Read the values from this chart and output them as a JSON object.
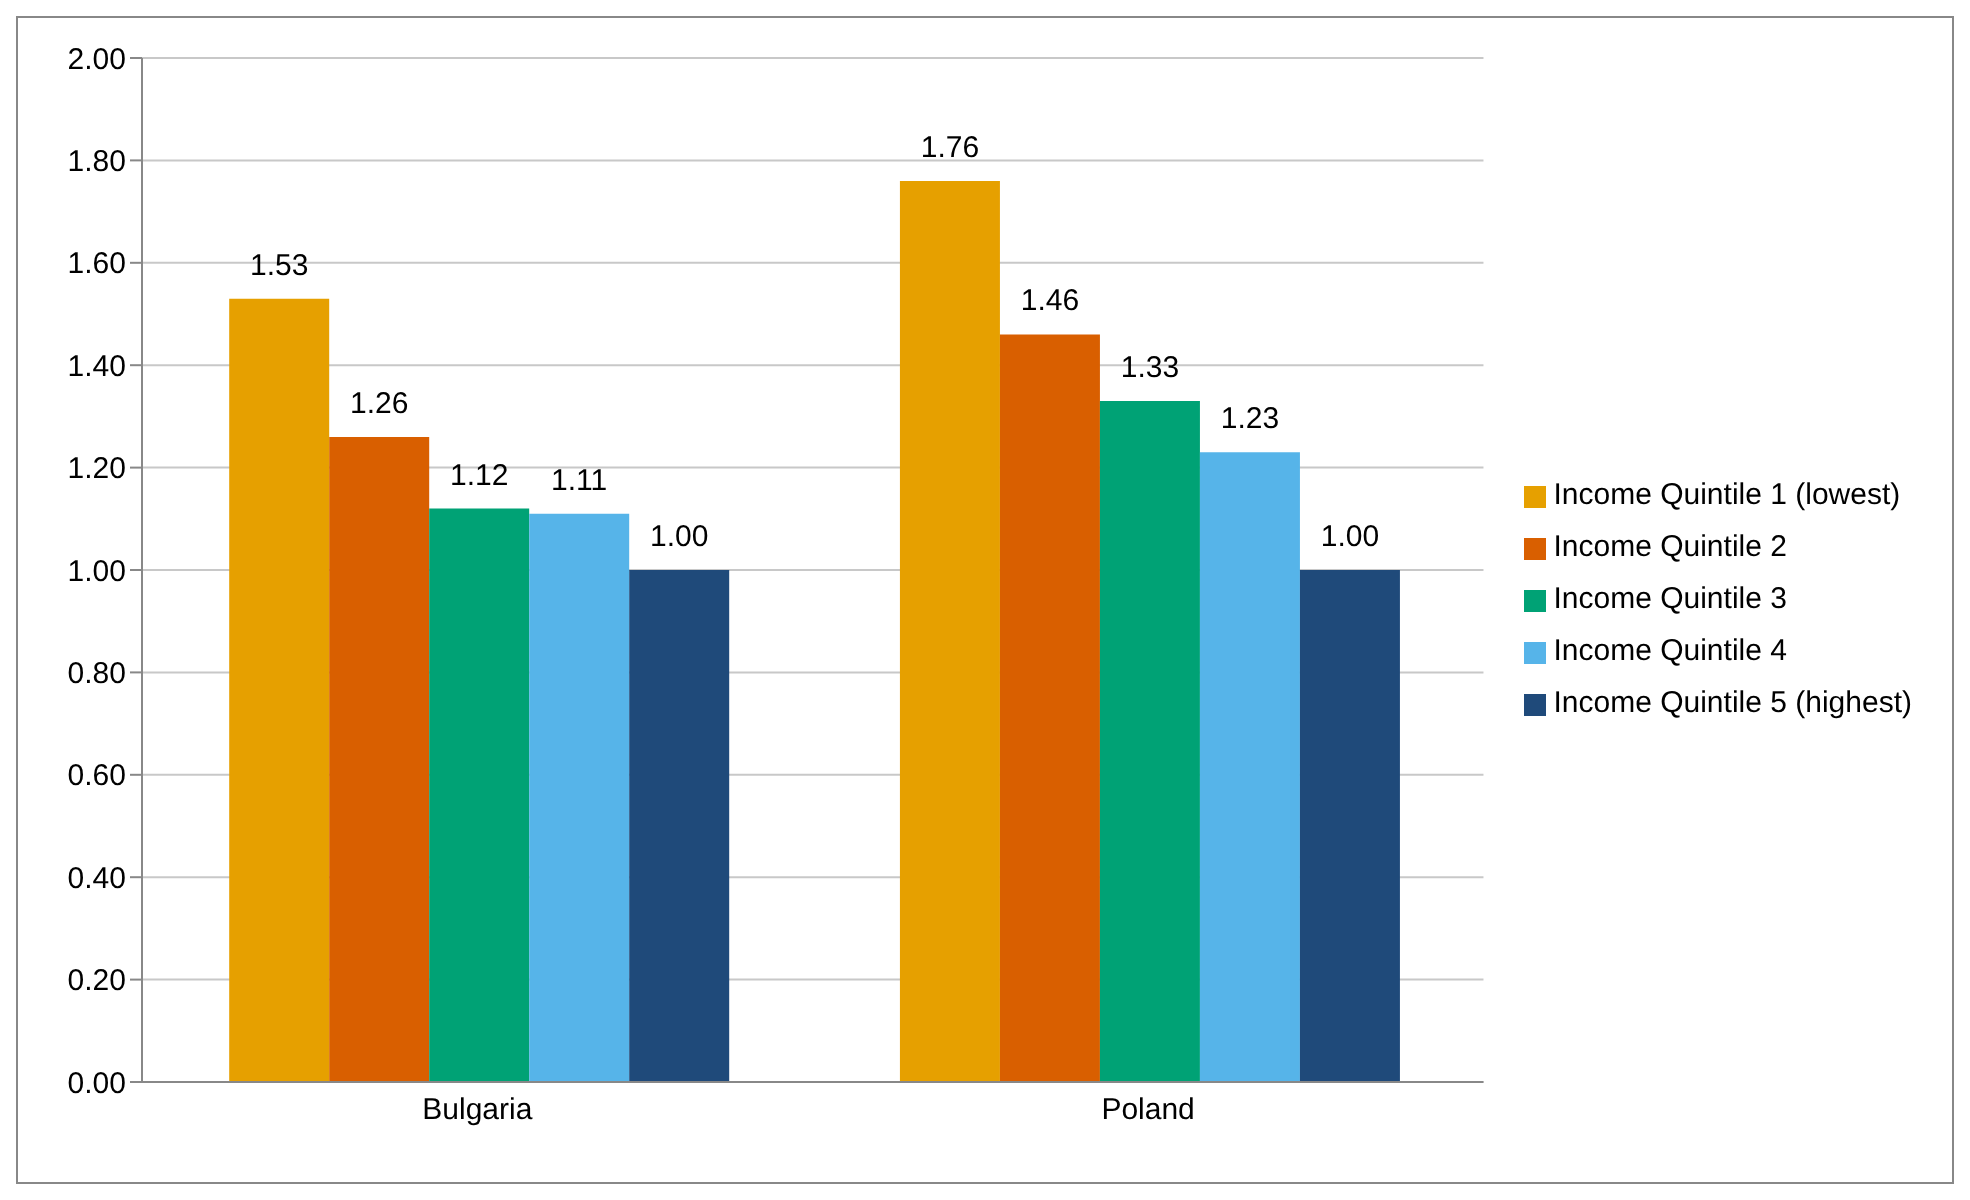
{
  "chart_data": {
    "type": "bar",
    "categories": [
      "Bulgaria",
      "Poland"
    ],
    "series": [
      {
        "name": "Income Quintile 1 (lowest)",
        "color": "#e6a000",
        "values": [
          1.53,
          1.76
        ],
        "value_labels": [
          "1.53",
          "1.76"
        ]
      },
      {
        "name": "Income Quintile 2",
        "color": "#d95f00",
        "values": [
          1.26,
          1.46
        ],
        "value_labels": [
          "1.26",
          "1.46"
        ]
      },
      {
        "name": "Income Quintile 3",
        "color": "#00a275",
        "values": [
          1.12,
          1.33
        ],
        "value_labels": [
          "1.12",
          "1.33"
        ]
      },
      {
        "name": "Income Quintile 4",
        "color": "#56b4e9",
        "values": [
          1.11,
          1.23
        ],
        "value_labels": [
          "1.11",
          "1.23"
        ]
      },
      {
        "name": "Income Quintile 5 (highest)",
        "color": "#1f4a7a",
        "values": [
          1.0,
          1.0
        ],
        "value_labels": [
          "1.00",
          "1.00"
        ]
      }
    ],
    "ylim": [
      0,
      2
    ],
    "yticks": [
      {
        "value": 0,
        "label": "0.00"
      },
      {
        "value": 0.2,
        "label": "0.20"
      },
      {
        "value": 0.4,
        "label": "0.40"
      },
      {
        "value": 0.6,
        "label": "0.60"
      },
      {
        "value": 0.8,
        "label": "0.80"
      },
      {
        "value": 1,
        "label": "1.00"
      },
      {
        "value": 1.2,
        "label": "1.20"
      },
      {
        "value": 1.4,
        "label": "1.40"
      },
      {
        "value": 1.6,
        "label": "1.60"
      },
      {
        "value": 1.8,
        "label": "1.80"
      },
      {
        "value": 2,
        "label": "2.00"
      }
    ],
    "grid": "y",
    "legend": "right"
  }
}
